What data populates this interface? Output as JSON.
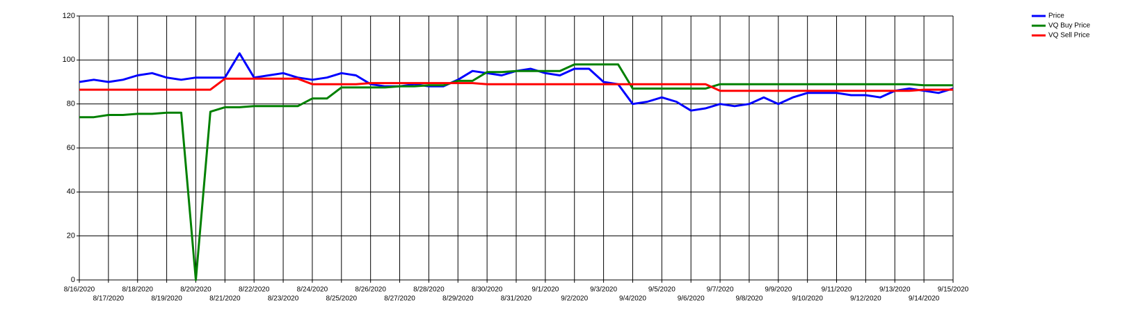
{
  "chart_data": {
    "type": "line",
    "categories": [
      "8/16/2020",
      null,
      "8/17/2020",
      null,
      "8/18/2020",
      null,
      "8/19/2020",
      null,
      "8/20/2020",
      null,
      "8/21/2020",
      null,
      "8/22/2020",
      null,
      "8/23/2020",
      null,
      "8/24/2020",
      null,
      "8/25/2020",
      null,
      "8/26/2020",
      null,
      "8/27/2020",
      null,
      "8/28/2020",
      null,
      "8/29/2020",
      null,
      "8/30/2020",
      null,
      "8/31/2020",
      null,
      "9/1/2020",
      null,
      "9/2/2020",
      null,
      "9/3/2020",
      null,
      "9/4/2020",
      null,
      "9/5/2020",
      null,
      "9/6/2020",
      null,
      "9/7/2020",
      null,
      "9/8/2020",
      null,
      "9/9/2020",
      null,
      "9/10/2020",
      null,
      "9/11/2020",
      null,
      "9/12/2020",
      null,
      "9/13/2020",
      null,
      "9/14/2020",
      null,
      "9/15/2020"
    ],
    "series": [
      {
        "name": "Price",
        "color": "#0000ff",
        "values": [
          90,
          91,
          90,
          91,
          93,
          94,
          92,
          91,
          92,
          92,
          92,
          103,
          92,
          93,
          94,
          92,
          91,
          92,
          94,
          93,
          89,
          88,
          88,
          89,
          88,
          88,
          91,
          95,
          94,
          93,
          95,
          96,
          94,
          93,
          96,
          96,
          90,
          89,
          80,
          81,
          83,
          81,
          77,
          78,
          80,
          79,
          80,
          83,
          80,
          83,
          85,
          85,
          85,
          84,
          84,
          83,
          86,
          87,
          86,
          85,
          87
        ]
      },
      {
        "name": "VQ Buy Price",
        "color": "#008000",
        "values": [
          74,
          74,
          75,
          75,
          75.5,
          75.5,
          76,
          76,
          0,
          76.5,
          78.5,
          78.5,
          79,
          79,
          79,
          79,
          82.5,
          82.5,
          87.5,
          87.5,
          87.5,
          87.5,
          88,
          88,
          88.5,
          88.5,
          90.5,
          90.5,
          94.5,
          94.5,
          95,
          95,
          95,
          95,
          98,
          98,
          98,
          98,
          87,
          87,
          87,
          87,
          87,
          87,
          89,
          89,
          89,
          89,
          89,
          89,
          89,
          89,
          89,
          89,
          89,
          89,
          89,
          89,
          88.5,
          88.5,
          88.5
        ]
      },
      {
        "name": "VQ Sell Price",
        "color": "#ff0000",
        "values": [
          86.5,
          86.5,
          86.5,
          86.5,
          86.5,
          86.5,
          86.5,
          86.5,
          86.5,
          86.5,
          91.5,
          91.5,
          91.5,
          91.5,
          91.5,
          91.5,
          89,
          89,
          89,
          89,
          89.5,
          89.5,
          89.5,
          89.5,
          89.5,
          89.5,
          89.5,
          89.5,
          89,
          89,
          89,
          89,
          89,
          89,
          89,
          89,
          89,
          89,
          89,
          89,
          89,
          89,
          89,
          89,
          86,
          86,
          86,
          86,
          86,
          86,
          86,
          86,
          86,
          86,
          86,
          86,
          86,
          86,
          86.5,
          86.5,
          86.5
        ]
      }
    ],
    "ylim": [
      0,
      120
    ],
    "yticks": [
      0,
      20,
      40,
      60,
      80,
      100,
      120
    ],
    "grid": true,
    "legend": "top-right"
  }
}
